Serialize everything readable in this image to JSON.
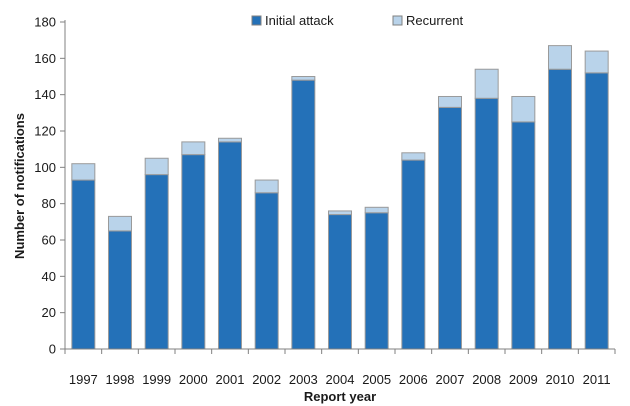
{
  "chart_data": {
    "type": "bar",
    "stacked": true,
    "title": "",
    "xlabel": "Report year",
    "ylabel": "Number of notifications",
    "ylim": [
      0,
      180
    ],
    "yticks": [
      0,
      20,
      40,
      60,
      80,
      100,
      120,
      140,
      160,
      180
    ],
    "legend_position": "top",
    "grid": false,
    "categories": [
      "1997",
      "1998",
      "1999",
      "2000",
      "2001",
      "2002",
      "2003",
      "2004",
      "2005",
      "2006",
      "2007",
      "2008",
      "2009",
      "2010",
      "2011"
    ],
    "series": [
      {
        "name": "Initial attack",
        "color": "#2471b8",
        "values": [
          93,
          65,
          96,
          107,
          114,
          86,
          148,
          74,
          75,
          104,
          133,
          138,
          125,
          154,
          152
        ]
      },
      {
        "name": "Recurrent",
        "color": "#b9d3ea",
        "values": [
          9,
          8,
          9,
          7,
          2,
          7,
          2,
          2,
          3,
          4,
          6,
          16,
          14,
          13,
          12
        ]
      }
    ]
  }
}
